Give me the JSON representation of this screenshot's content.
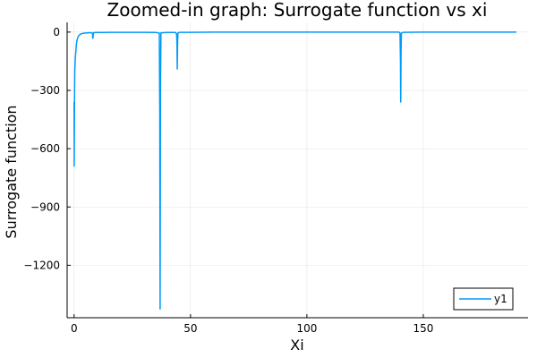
{
  "chart_data": {
    "type": "line",
    "title": "Zoomed-in graph: Surrogate function vs xi",
    "xlabel": "Xi",
    "ylabel": "Surrogate function",
    "xlim": [
      -3,
      195
    ],
    "ylim": [
      -1470,
      50
    ],
    "x_ticks": [
      0,
      50,
      100,
      150
    ],
    "y_ticks": [
      0,
      -300,
      -600,
      -900,
      -1200
    ],
    "x_tick_labels": [
      "0",
      "50",
      "100",
      "150"
    ],
    "y_tick_labels": [
      "0",
      "−300",
      "−600",
      "−900",
      "−1200"
    ],
    "grid": true,
    "legend_position": "bottom-right",
    "series": [
      {
        "name": "y1",
        "color": "#009af9",
        "x": [
          0,
          0.05,
          0.12,
          0.2,
          0.3,
          0.45,
          0.6,
          0.8,
          1.0,
          1.3,
          1.7,
          2.2,
          3.0,
          4.0,
          5.5,
          7.0,
          7.9,
          8.0,
          8.1,
          8.25,
          8.4,
          9.5,
          12,
          16,
          20,
          25,
          30,
          35,
          36.6,
          36.8,
          36.95,
          37.1,
          37.3,
          40,
          43.5,
          44.0,
          44.2,
          44.3,
          44.45,
          44.6,
          45.5,
          50,
          60,
          80,
          100,
          120,
          139.5,
          140.0,
          140.2,
          140.3,
          140.45,
          140.6,
          141.5,
          150,
          160,
          175,
          190
        ],
        "y": [
          -360,
          -690,
          -520,
          -300,
          -200,
          -150,
          -120,
          -90,
          -60,
          -40,
          -25,
          -15,
          -9,
          -6,
          -4,
          -3,
          -5,
          -32,
          -30,
          -8,
          -3,
          -2,
          -2,
          -1,
          -1,
          -1,
          -1,
          -2,
          -5,
          -400,
          -1425,
          -300,
          -4,
          -2,
          -2,
          -8,
          -60,
          -190,
          -60,
          -4,
          -1,
          -1,
          0,
          0,
          0,
          0,
          0,
          -5,
          -150,
          -360,
          -100,
          -5,
          -1,
          0,
          0,
          0,
          0
        ]
      }
    ]
  }
}
